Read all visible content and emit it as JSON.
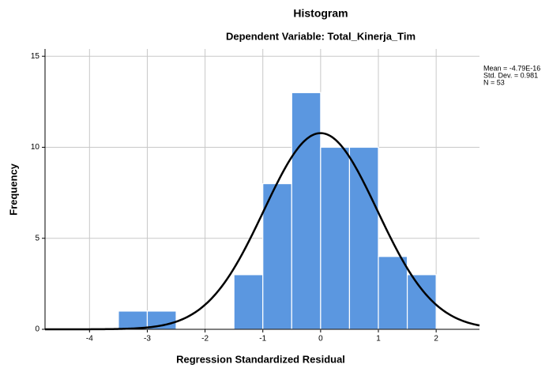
{
  "chart_data": {
    "type": "histogram",
    "title": "Histogram",
    "subtitle": "Dependent Variable: Total_Kinerja_Tim",
    "x_label": "Regression Standardized Residual",
    "y_label": "Frequency",
    "bins": [
      -3.5,
      -3,
      -2.5,
      -2,
      -1.5,
      -1,
      -0.5,
      0,
      0.5,
      1,
      1.5,
      2
    ],
    "values": [
      1,
      1,
      0,
      0,
      3,
      8,
      13,
      10,
      10,
      4,
      3
    ],
    "color": "#5b97e0",
    "curve_color": "#000000",
    "stats": [
      {
        "value": -4.79e-16,
        "label": "Mean = -4.79E-16"
      },
      {
        "value": 0.981,
        "label": "Std. Dev. = 0.981"
      },
      {
        "value": 53,
        "label": "N = 53"
      }
    ],
    "xlim": [
      -4.77,
      2.75
    ],
    "ylim": [
      0,
      15.4
    ],
    "xticks": [
      -4,
      -3,
      -2,
      -1,
      0,
      1,
      2
    ],
    "yticks": [
      0,
      5,
      10,
      15
    ],
    "grid": true
  }
}
